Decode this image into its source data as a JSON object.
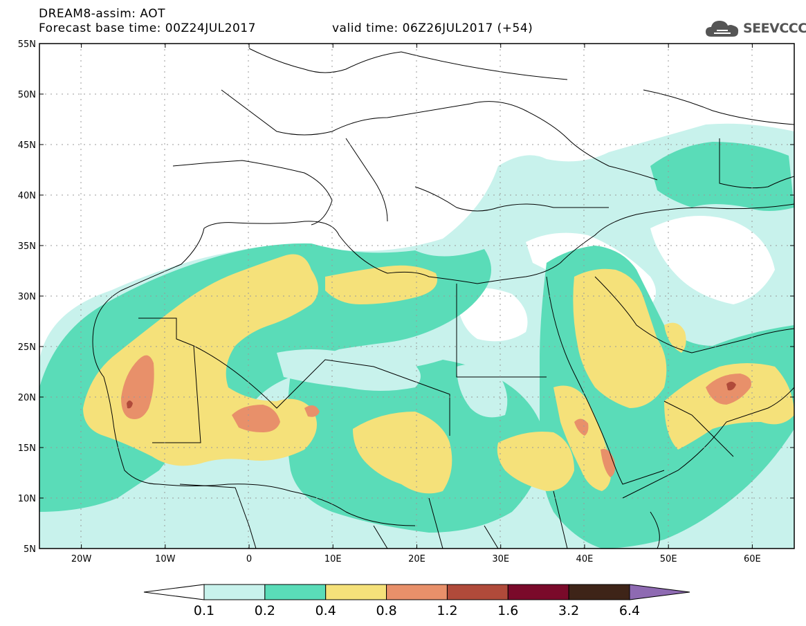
{
  "header": {
    "line1": "DREAM8-assim: AOT",
    "line2": "Forecast base time: 00Z24JUL2017",
    "line3": "valid time: 06Z26JUL2017 (+54)",
    "logo_text": "SEEVCCC"
  },
  "map": {
    "lat_ticks": [
      "55N",
      "50N",
      "45N",
      "40N",
      "35N",
      "30N",
      "25N",
      "20N",
      "15N",
      "10N",
      "5N"
    ],
    "lon_ticks": [
      "20W",
      "10W",
      "0",
      "10E",
      "20E",
      "30E",
      "40E",
      "50E",
      "60E"
    ],
    "lon_range": [
      -25,
      65
    ],
    "lat_range": [
      5,
      55
    ],
    "grid": "dotted"
  },
  "colorbar": {
    "labels": [
      "0.1",
      "0.2",
      "0.4",
      "0.8",
      "1.2",
      "1.6",
      "3.2",
      "6.4"
    ],
    "colors": [
      "#ffffff",
      "#c8f2ec",
      "#5adcb8",
      "#f5e17a",
      "#e8906a",
      "#b04a3a",
      "#7a0a2a",
      "#3e2418",
      "#8e6ab2"
    ]
  },
  "colors": {
    "lev1": "#c8f2ec",
    "lev2": "#5adcb8",
    "lev3": "#f5e17a",
    "lev4": "#e8906a",
    "lev5": "#b04a3a",
    "lev6": "#7a0a2a",
    "lev7": "#3e2418",
    "lev8": "#8e6ab2"
  }
}
